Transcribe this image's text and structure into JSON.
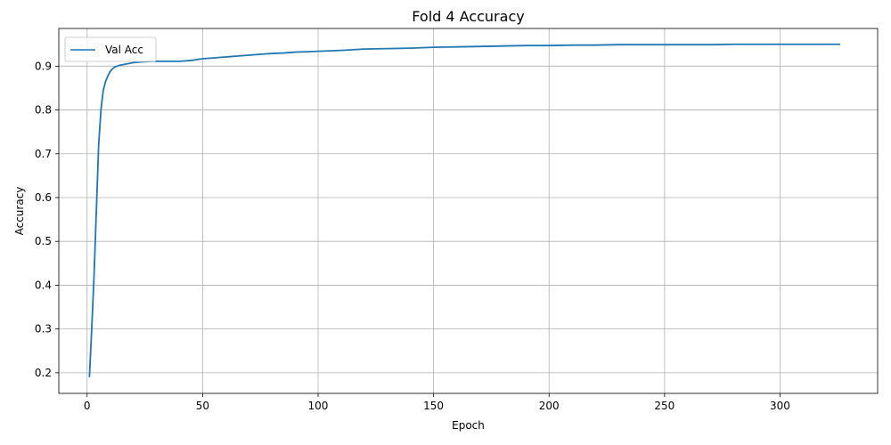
{
  "chart_data": {
    "type": "line",
    "title": "Fold 4 Accuracy",
    "xlabel": "Epoch",
    "ylabel": "Accuracy",
    "xlim": [
      -12.25,
      342.25
    ],
    "ylim": [
      0.153,
      0.986
    ],
    "xticks": [
      0,
      50,
      100,
      150,
      200,
      250,
      300
    ],
    "yticks": [
      0.2,
      0.3,
      0.4,
      0.5,
      0.6,
      0.7,
      0.8,
      0.9
    ],
    "ytick_labels": [
      "0.2",
      "0.3",
      "0.4",
      "0.5",
      "0.6",
      "0.7",
      "0.8",
      "0.9"
    ],
    "grid": true,
    "legend_position": "upper-left",
    "colors": {
      "series": "#1f77b4",
      "grid": "#b0b0b0",
      "axis": "#000000"
    },
    "series": [
      {
        "name": "Val Acc",
        "x": [
          1,
          2,
          3,
          4,
          5,
          6,
          7,
          8,
          9,
          10,
          11,
          12,
          13,
          14,
          15,
          16,
          17,
          18,
          20,
          22,
          25,
          28,
          30,
          35,
          40,
          45,
          50,
          55,
          60,
          65,
          70,
          75,
          80,
          85,
          90,
          95,
          100,
          110,
          120,
          130,
          140,
          150,
          160,
          170,
          180,
          190,
          200,
          210,
          220,
          230,
          240,
          250,
          260,
          270,
          280,
          290,
          300,
          310,
          320,
          326
        ],
        "y": [
          0.19,
          0.3,
          0.42,
          0.57,
          0.72,
          0.8,
          0.845,
          0.865,
          0.878,
          0.888,
          0.894,
          0.898,
          0.9,
          0.902,
          0.903,
          0.904,
          0.905,
          0.906,
          0.908,
          0.909,
          0.91,
          0.911,
          0.911,
          0.911,
          0.911,
          0.913,
          0.917,
          0.919,
          0.921,
          0.923,
          0.925,
          0.927,
          0.929,
          0.93,
          0.932,
          0.933,
          0.934,
          0.936,
          0.939,
          0.94,
          0.941,
          0.943,
          0.944,
          0.945,
          0.946,
          0.947,
          0.947,
          0.948,
          0.948,
          0.949,
          0.949,
          0.949,
          0.949,
          0.949,
          0.95,
          0.95,
          0.95,
          0.95,
          0.95,
          0.95
        ]
      }
    ]
  }
}
